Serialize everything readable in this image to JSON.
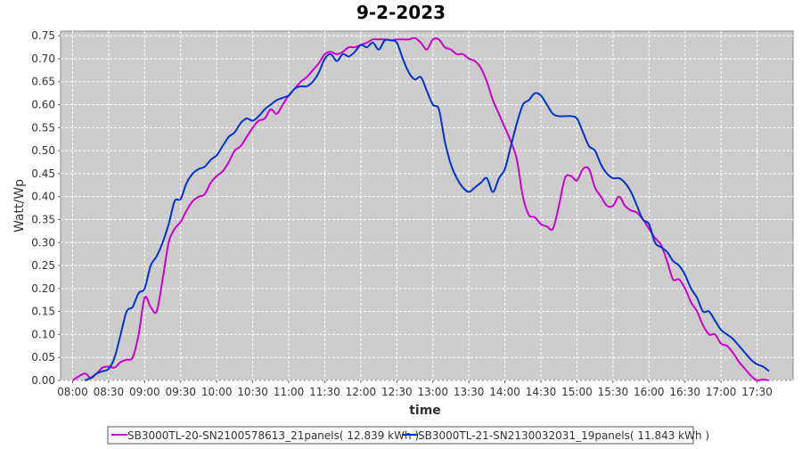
{
  "chart_data": {
    "type": "line",
    "title": "9-2-2023",
    "xlabel": "time",
    "ylabel": "Watt/Wp",
    "xlim": [
      "07:50",
      "18:00"
    ],
    "ylim": [
      0,
      0.76
    ],
    "x_ticks": [
      "08:00",
      "08:30",
      "09:00",
      "09:30",
      "10:00",
      "10:30",
      "11:00",
      "11:30",
      "12:00",
      "12:30",
      "13:00",
      "13:30",
      "14:00",
      "14:30",
      "15:00",
      "15:30",
      "16:00",
      "16:30",
      "17:00",
      "17:30"
    ],
    "y_ticks": [
      0.0,
      0.05,
      0.1,
      0.15,
      0.2,
      0.25,
      0.3,
      0.35,
      0.4,
      0.45,
      0.5,
      0.55,
      0.6,
      0.65,
      0.7,
      0.75
    ],
    "y_tick_labels": [
      "0.00",
      "0.05",
      "0.10",
      "0.15",
      "0.20",
      "0.25",
      "0.30",
      "0.35",
      "0.40",
      "0.45",
      "0.50",
      "0.55",
      "0.60",
      "0.65",
      "0.70",
      "0.75"
    ],
    "grid": true,
    "legend_position": "bottom",
    "colors": {
      "plot_background": "#cccccc",
      "grid": "#ffffff",
      "series_1": "#cc00cc",
      "series_2": "#0033cc"
    },
    "series": [
      {
        "name": "SB3000TL-20-SN2100578613_21panels( 12.839 kWh )",
        "color": "#cc00cc",
        "x": [
          "08:00",
          "08:10",
          "08:15",
          "08:20",
          "08:25",
          "08:30",
          "08:35",
          "08:40",
          "08:45",
          "08:50",
          "08:55",
          "09:00",
          "09:05",
          "09:10",
          "09:15",
          "09:20",
          "09:25",
          "09:30",
          "09:35",
          "09:40",
          "09:45",
          "09:50",
          "09:55",
          "10:00",
          "10:05",
          "10:10",
          "10:15",
          "10:20",
          "10:25",
          "10:30",
          "10:35",
          "10:40",
          "10:45",
          "10:50",
          "10:55",
          "11:00",
          "11:05",
          "11:10",
          "11:15",
          "11:20",
          "11:25",
          "11:30",
          "11:35",
          "11:40",
          "11:45",
          "11:50",
          "11:55",
          "12:00",
          "12:05",
          "12:10",
          "12:15",
          "12:20",
          "12:25",
          "12:30",
          "12:35",
          "12:40",
          "12:45",
          "12:50",
          "12:55",
          "13:00",
          "13:05",
          "13:10",
          "13:15",
          "13:20",
          "13:25",
          "13:30",
          "13:35",
          "13:40",
          "13:45",
          "13:50",
          "13:55",
          "14:00",
          "14:05",
          "14:10",
          "14:15",
          "14:20",
          "14:25",
          "14:30",
          "14:35",
          "14:40",
          "14:45",
          "14:50",
          "14:55",
          "15:00",
          "15:05",
          "15:10",
          "15:15",
          "15:20",
          "15:25",
          "15:30",
          "15:35",
          "15:40",
          "15:45",
          "15:50",
          "15:55",
          "16:00",
          "16:05",
          "16:10",
          "16:15",
          "16:20",
          "16:25",
          "16:30",
          "16:35",
          "16:40",
          "16:45",
          "16:50",
          "16:55",
          "17:00",
          "17:05",
          "17:10",
          "17:15",
          "17:20",
          "17:25",
          "17:30",
          "17:35",
          "17:40"
        ],
        "values": [
          0.0,
          0.015,
          0.005,
          0.015,
          0.028,
          0.03,
          0.028,
          0.04,
          0.045,
          0.05,
          0.1,
          0.18,
          0.16,
          0.15,
          0.22,
          0.3,
          0.33,
          0.345,
          0.37,
          0.39,
          0.4,
          0.405,
          0.43,
          0.445,
          0.455,
          0.475,
          0.5,
          0.51,
          0.53,
          0.55,
          0.565,
          0.57,
          0.59,
          0.58,
          0.6,
          0.62,
          0.635,
          0.65,
          0.66,
          0.675,
          0.69,
          0.71,
          0.715,
          0.71,
          0.715,
          0.725,
          0.725,
          0.73,
          0.735,
          0.742,
          0.742,
          0.742,
          0.74,
          0.742,
          0.742,
          0.742,
          0.745,
          0.735,
          0.72,
          0.742,
          0.742,
          0.725,
          0.72,
          0.71,
          0.71,
          0.7,
          0.695,
          0.68,
          0.65,
          0.61,
          0.58,
          0.55,
          0.52,
          0.48,
          0.4,
          0.36,
          0.355,
          0.34,
          0.335,
          0.33,
          0.38,
          0.44,
          0.445,
          0.435,
          0.46,
          0.46,
          0.42,
          0.4,
          0.38,
          0.38,
          0.4,
          0.38,
          0.37,
          0.365,
          0.35,
          0.33,
          0.31,
          0.295,
          0.26,
          0.22,
          0.22,
          0.2,
          0.17,
          0.15,
          0.12,
          0.1,
          0.1,
          0.08,
          0.075,
          0.06,
          0.04,
          0.025,
          0.01,
          0.0,
          0.002,
          0.0
        ]
      },
      {
        "name": "SB3000TL-21-SN2130032031_19panels( 11.843 kWh )",
        "color": "#0033cc",
        "x": [
          "08:10",
          "08:15",
          "08:20",
          "08:25",
          "08:30",
          "08:35",
          "08:40",
          "08:45",
          "08:50",
          "08:55",
          "09:00",
          "09:05",
          "09:10",
          "09:15",
          "09:20",
          "09:25",
          "09:30",
          "09:35",
          "09:40",
          "09:45",
          "09:50",
          "09:55",
          "10:00",
          "10:05",
          "10:10",
          "10:15",
          "10:20",
          "10:25",
          "10:30",
          "10:35",
          "10:40",
          "10:45",
          "10:50",
          "10:55",
          "11:00",
          "11:05",
          "11:10",
          "11:15",
          "11:20",
          "11:25",
          "11:30",
          "11:35",
          "11:40",
          "11:45",
          "11:50",
          "11:55",
          "12:00",
          "12:05",
          "12:10",
          "12:15",
          "12:20",
          "12:25",
          "12:30",
          "12:35",
          "12:40",
          "12:45",
          "12:50",
          "12:55",
          "13:00",
          "13:05",
          "13:10",
          "13:15",
          "13:20",
          "13:25",
          "13:30",
          "13:35",
          "13:40",
          "13:45",
          "13:50",
          "13:55",
          "14:00",
          "14:05",
          "14:10",
          "14:15",
          "14:20",
          "14:25",
          "14:30",
          "14:35",
          "14:40",
          "14:45",
          "14:50",
          "14:55",
          "15:00",
          "15:05",
          "15:10",
          "15:15",
          "15:20",
          "15:25",
          "15:30",
          "15:35",
          "15:40",
          "15:45",
          "15:50",
          "15:55",
          "16:00",
          "16:05",
          "16:10",
          "16:15",
          "16:20",
          "16:25",
          "16:30",
          "16:35",
          "16:40",
          "16:45",
          "16:50",
          "16:55",
          "17:00",
          "17:05",
          "17:10",
          "17:15",
          "17:20",
          "17:25",
          "17:30",
          "17:35",
          "17:40"
        ],
        "values": [
          0.0,
          0.005,
          0.015,
          0.02,
          0.025,
          0.05,
          0.1,
          0.15,
          0.16,
          0.19,
          0.2,
          0.25,
          0.27,
          0.3,
          0.34,
          0.39,
          0.395,
          0.43,
          0.45,
          0.46,
          0.465,
          0.48,
          0.49,
          0.51,
          0.53,
          0.54,
          0.56,
          0.57,
          0.565,
          0.575,
          0.59,
          0.6,
          0.61,
          0.615,
          0.62,
          0.635,
          0.64,
          0.64,
          0.65,
          0.67,
          0.7,
          0.71,
          0.695,
          0.71,
          0.705,
          0.715,
          0.73,
          0.725,
          0.735,
          0.72,
          0.74,
          0.74,
          0.735,
          0.7,
          0.67,
          0.655,
          0.66,
          0.63,
          0.6,
          0.59,
          0.52,
          0.47,
          0.44,
          0.42,
          0.41,
          0.42,
          0.43,
          0.44,
          0.41,
          0.44,
          0.46,
          0.51,
          0.56,
          0.6,
          0.61,
          0.625,
          0.62,
          0.6,
          0.58,
          0.575,
          0.575,
          0.575,
          0.57,
          0.54,
          0.51,
          0.5,
          0.47,
          0.45,
          0.44,
          0.44,
          0.43,
          0.41,
          0.38,
          0.35,
          0.34,
          0.3,
          0.29,
          0.28,
          0.26,
          0.25,
          0.23,
          0.2,
          0.18,
          0.15,
          0.15,
          0.13,
          0.11,
          0.1,
          0.09,
          0.075,
          0.06,
          0.045,
          0.035,
          0.03,
          0.02
        ]
      }
    ]
  }
}
